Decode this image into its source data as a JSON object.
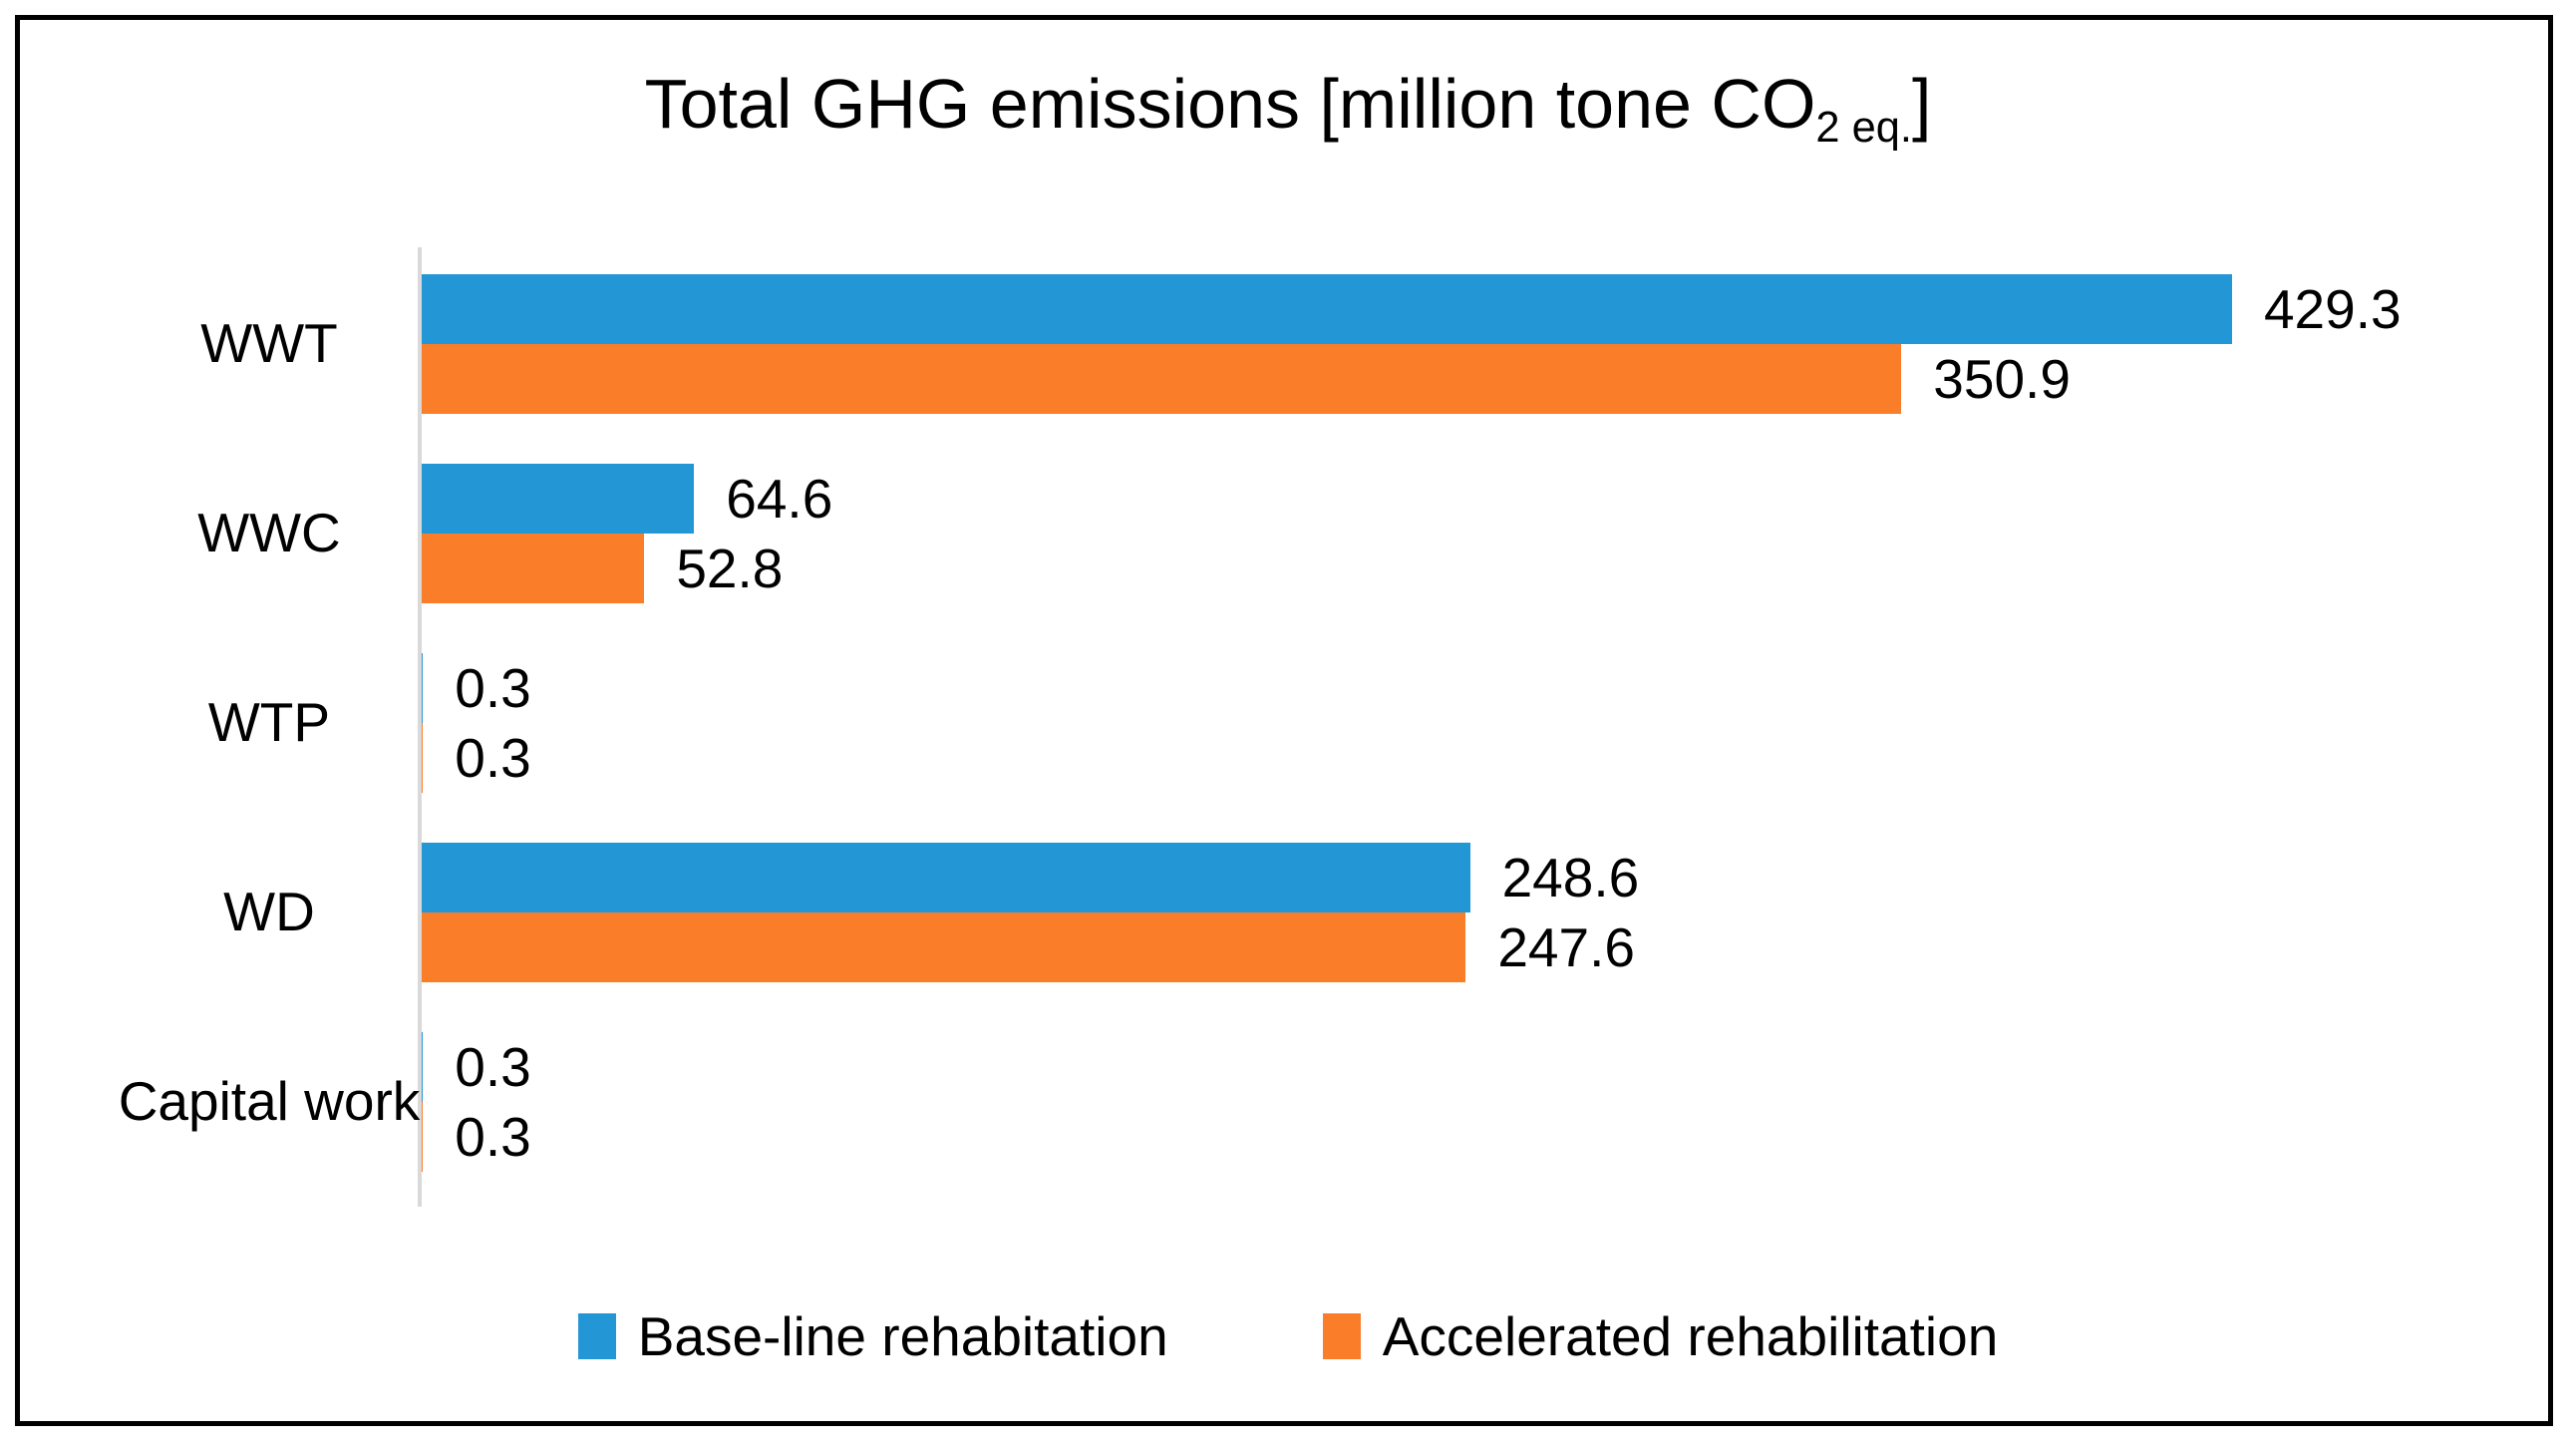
{
  "chart_data": {
    "type": "bar",
    "orientation": "horizontal",
    "title": "Total GHG emissions [million tone CO2 eq.]",
    "title_parts": {
      "main": "Total GHG emissions [million tone CO",
      "subscript": "2 eq.",
      "close": "]"
    },
    "categories": [
      "WWT",
      "WWC",
      "WTP",
      "WD",
      "Capital work"
    ],
    "series": [
      {
        "name": "Base-line rehabitation",
        "color": "#2396d5",
        "values": [
          429.3,
          64.6,
          0.3,
          248.6,
          0.3
        ],
        "labels": [
          "429.3",
          "64.6",
          "0.3",
          "248.6",
          "0.3"
        ]
      },
      {
        "name": "Accelerated rehabilitation",
        "color": "#fa7d29",
        "values": [
          350.9,
          52.8,
          0.3,
          247.6,
          0.3
        ],
        "labels": [
          "350.9",
          "52.8",
          "0.3",
          "247.6",
          "0.3"
        ]
      }
    ],
    "xlim": [
      0,
      480
    ],
    "grid": false,
    "data_labels": true,
    "legend_position": "bottom",
    "axis_line_color": "#d9d9d9",
    "frame_border_color": "#000000",
    "background_color": "#ffffff"
  }
}
